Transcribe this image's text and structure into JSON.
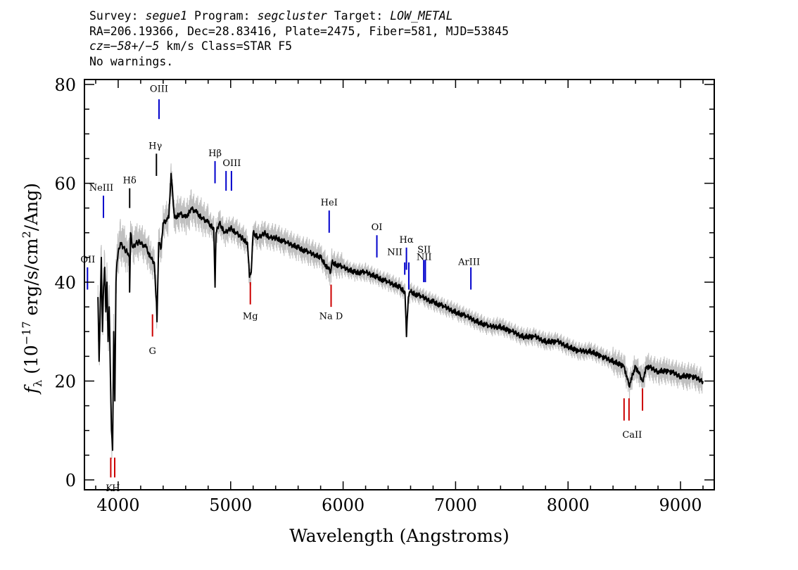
{
  "header": {
    "survey_label": "Survey:",
    "survey": "segue1",
    "program_label": "Program:",
    "program": "segcluster",
    "target_label": "Target:",
    "target": "LOW_METAL",
    "line2": "RA=206.19366, Dec=28.83416, Plate=2475, Fiber=581, MJD=53845",
    "cz_label": "cz=−58+/−5",
    "line3_rest": "km/s Class=STAR F5",
    "line4": "No warnings."
  },
  "chart_data": {
    "type": "line",
    "xlabel": "Wavelength (Angstroms)",
    "ylabel_prefix": "f",
    "ylabel_sub": "λ",
    "ylabel_text": " (10",
    "ylabel_exp": "−17",
    "ylabel_text2": " erg/s/cm",
    "ylabel_exp2": "2",
    "ylabel_text3": "/Ang)",
    "xlim": [
      3700,
      9300
    ],
    "ylim": [
      -2,
      81
    ],
    "x_ticks": [
      4000,
      5000,
      6000,
      7000,
      8000,
      9000
    ],
    "x_tick_labels": [
      "4000",
      "5000",
      "6000",
      "7000",
      "8000",
      "9000"
    ],
    "y_ticks": [
      0,
      20,
      40,
      60,
      80
    ],
    "y_tick_labels": [
      "0",
      "20",
      "40",
      "60",
      "80"
    ],
    "series": [
      {
        "role": "flux",
        "color": "#000000",
        "x": [
          3820,
          3830,
          3840,
          3850,
          3860,
          3870,
          3880,
          3890,
          3900,
          3910,
          3920,
          3930,
          3940,
          3950,
          3960,
          3970,
          3980,
          3990,
          4000,
          4020,
          4050,
          4080,
          4100,
          4102,
          4110,
          4130,
          4160,
          4200,
          4250,
          4290,
          4320,
          4340,
          4345,
          4360,
          4383,
          4400,
          4450,
          4470,
          4500,
          4550,
          4600,
          4650,
          4700,
          4750,
          4800,
          4850,
          4861,
          4870,
          4900,
          4950,
          5000,
          5050,
          5100,
          5150,
          5167,
          5183,
          5200,
          5250,
          5300,
          5350,
          5400,
          5500,
          5600,
          5700,
          5800,
          5890,
          5900,
          6000,
          6100,
          6200,
          6300,
          6400,
          6500,
          6550,
          6563,
          6580,
          6600,
          6700,
          6800,
          6900,
          7000,
          7100,
          7200,
          7300,
          7400,
          7500,
          7600,
          7700,
          7800,
          7900,
          8000,
          8100,
          8200,
          8300,
          8400,
          8498,
          8542,
          8600,
          8662,
          8700,
          8800,
          8900,
          9000,
          9100,
          9200
        ],
        "y": [
          37,
          24,
          34,
          45,
          30,
          39,
          43,
          34,
          40,
          28,
          35,
          22,
          10,
          6,
          30,
          16,
          40,
          44,
          46,
          48,
          47,
          46,
          45,
          38,
          50,
          47,
          48,
          48,
          47,
          45,
          44,
          36,
          32,
          48,
          47,
          52,
          53,
          62,
          53,
          54,
          53,
          55,
          54,
          53,
          52,
          51,
          39,
          50,
          52,
          50,
          51,
          50,
          49,
          48,
          41,
          42,
          50,
          49,
          50,
          49,
          49,
          48,
          47,
          46,
          45,
          42,
          44,
          43,
          42,
          42,
          41,
          40,
          39,
          38,
          29,
          37,
          38,
          37,
          36,
          35,
          34,
          33,
          32,
          31,
          31,
          30,
          29,
          29,
          28,
          28,
          27,
          26,
          26,
          25,
          24,
          23,
          19,
          23,
          20,
          23,
          22,
          22,
          21,
          21,
          20
        ]
      },
      {
        "role": "error",
        "color": "#bfbfbf",
        "x": [
          3820,
          3830,
          3840,
          3850,
          3860,
          3870,
          3880,
          3890,
          3900,
          3910,
          3920,
          3930,
          3940,
          3950,
          3960,
          3970,
          3980,
          3990,
          4000,
          4020,
          4050,
          4080,
          4100,
          4102,
          4110,
          4130,
          4160,
          4200,
          4250,
          4290,
          4320,
          4340,
          4345,
          4360,
          4383,
          4400,
          4450,
          4470,
          4500,
          4550,
          4600,
          4650,
          4700,
          4750,
          4800,
          4850,
          4861,
          4870,
          4900,
          4950,
          5000,
          5050,
          5100,
          5150,
          5167,
          5183,
          5200,
          5250,
          5300,
          5350,
          5400,
          5500,
          5600,
          5700,
          5800,
          5890,
          5900,
          6000,
          6100,
          6200,
          6300,
          6400,
          6500,
          6550,
          6563,
          6580,
          6600,
          6700,
          6800,
          6900,
          7000,
          7100,
          7200,
          7300,
          7400,
          7500,
          7600,
          7700,
          7800,
          7900,
          8000,
          8100,
          8200,
          8300,
          8400,
          8498,
          8542,
          8600,
          8662,
          8700,
          8800,
          8900,
          9000,
          9100,
          9200
        ],
        "y": [
          6,
          7,
          7,
          6,
          6,
          6,
          6,
          6,
          6,
          5,
          5,
          5,
          5,
          5,
          5,
          5,
          5,
          5,
          5,
          5,
          5,
          4,
          4,
          4,
          4,
          4,
          4,
          4,
          4,
          4,
          4,
          4,
          4,
          4,
          4,
          4,
          4,
          4,
          4,
          4,
          4,
          4,
          4,
          4,
          3,
          3,
          3,
          3,
          3,
          3,
          3,
          3,
          3,
          3,
          3,
          3,
          3,
          3,
          3,
          3,
          3,
          3,
          3,
          3,
          3,
          3,
          3,
          2,
          2,
          2,
          2,
          2,
          2,
          2,
          2,
          2,
          2,
          2,
          2,
          2,
          2,
          2,
          2,
          2,
          2,
          2,
          2,
          2,
          2,
          2,
          2,
          2,
          2,
          2,
          3,
          3,
          3,
          3,
          3,
          3,
          3,
          3,
          3,
          3,
          3
        ]
      }
    ],
    "line_markers": [
      {
        "label": "OIII",
        "wl": 4363,
        "y0": 73,
        "y1": 77,
        "color": "#0000cc",
        "lx": 4363,
        "ly": 78.5
      },
      {
        "label": "Hγ",
        "wl": 4340,
        "y0": 61.5,
        "y1": 66,
        "color": "#000000",
        "lx": 4330,
        "ly": 67
      },
      {
        "label": "Hβ",
        "wl": 4861,
        "y0": 60,
        "y1": 64.5,
        "color": "#0000cc",
        "lx": 4861,
        "ly": 65.5
      },
      {
        "label": "OIII",
        "wl": 4959,
        "y0": 58.5,
        "y1": 62.5,
        "color": "#0000cc",
        "lx": 5010,
        "ly": 63.5
      },
      {
        "label": "OIII",
        "wl": 5007,
        "y0": 58.5,
        "y1": 62.5,
        "color": "#0000cc",
        "lx": null,
        "ly": null
      },
      {
        "label": "Hδ",
        "wl": 4102,
        "y0": 55,
        "y1": 59,
        "color": "#000000",
        "lx": 4102,
        "ly": 60
      },
      {
        "label": "NeIII",
        "wl": 3869,
        "y0": 53,
        "y1": 57.5,
        "color": "#0000cc",
        "lx": 3850,
        "ly": 58.5
      },
      {
        "label": "HeI",
        "wl": 5876,
        "y0": 50,
        "y1": 54.5,
        "color": "#0000cc",
        "lx": 5876,
        "ly": 55.5
      },
      {
        "label": "OI",
        "wl": 6300,
        "y0": 45,
        "y1": 49.5,
        "color": "#0000cc",
        "lx": 6300,
        "ly": 50.5
      },
      {
        "label": "Hα",
        "wl": 6563,
        "y0": 42.5,
        "y1": 47,
        "color": "#0000cc",
        "lx": 6563,
        "ly": 48
      },
      {
        "label": "NII",
        "wl": 6548,
        "y0": 41.5,
        "y1": 44,
        "color": "#0000cc",
        "lx": 6460,
        "ly": 45.5
      },
      {
        "label": "NII",
        "wl": 6584,
        "y0": 38.5,
        "y1": 44,
        "color": "#0000cc",
        "lx": 6720,
        "ly": 44.5
      },
      {
        "label": "SII",
        "wl": 6717,
        "y0": 40,
        "y1": 44.5,
        "color": "#0000cc",
        "lx": 6720,
        "ly": 46
      },
      {
        "label": "SII",
        "wl": 6731,
        "y0": 40,
        "y1": 44.5,
        "color": "#0000cc",
        "lx": null,
        "ly": null
      },
      {
        "label": "ArIII",
        "wl": 7136,
        "y0": 38.5,
        "y1": 43,
        "color": "#0000cc",
        "lx": 7120,
        "ly": 43.5
      },
      {
        "label": "OII",
        "wl": 3727,
        "y0": 38.5,
        "y1": 43,
        "color": "#0000cc",
        "lx": 3730,
        "ly": 44
      },
      {
        "label": "Mg",
        "wl": 5175,
        "y0": 35.5,
        "y1": 40,
        "color": "#cc0000",
        "lx": 5175,
        "ly": 32.5
      },
      {
        "label": "Na D",
        "wl": 5893,
        "y0": 35,
        "y1": 39.5,
        "color": "#cc0000",
        "lx": 5893,
        "ly": 32.5
      },
      {
        "label": "G",
        "wl": 4305,
        "y0": 29,
        "y1": 33.5,
        "color": "#cc0000",
        "lx": 4305,
        "ly": 25.5
      },
      {
        "label": "CaII",
        "wl": 8498,
        "y0": 12,
        "y1": 16.5,
        "color": "#cc0000",
        "lx": 8570,
        "ly": 8.5
      },
      {
        "label": "CaII",
        "wl": 8542,
        "y0": 12,
        "y1": 16.5,
        "color": "#cc0000",
        "lx": null,
        "ly": null
      },
      {
        "label": "CaII",
        "wl": 8662,
        "y0": 14,
        "y1": 18.5,
        "color": "#cc0000",
        "lx": null,
        "ly": null
      },
      {
        "label": "K",
        "wl": 3934,
        "y0": 0.5,
        "y1": 4.5,
        "color": "#cc0000",
        "lx": 3920,
        "ly": -2.3
      },
      {
        "label": "H",
        "wl": 3969,
        "y0": 0.5,
        "y1": 4.5,
        "color": "#cc0000",
        "lx": 3980,
        "ly": -2.3
      }
    ]
  }
}
